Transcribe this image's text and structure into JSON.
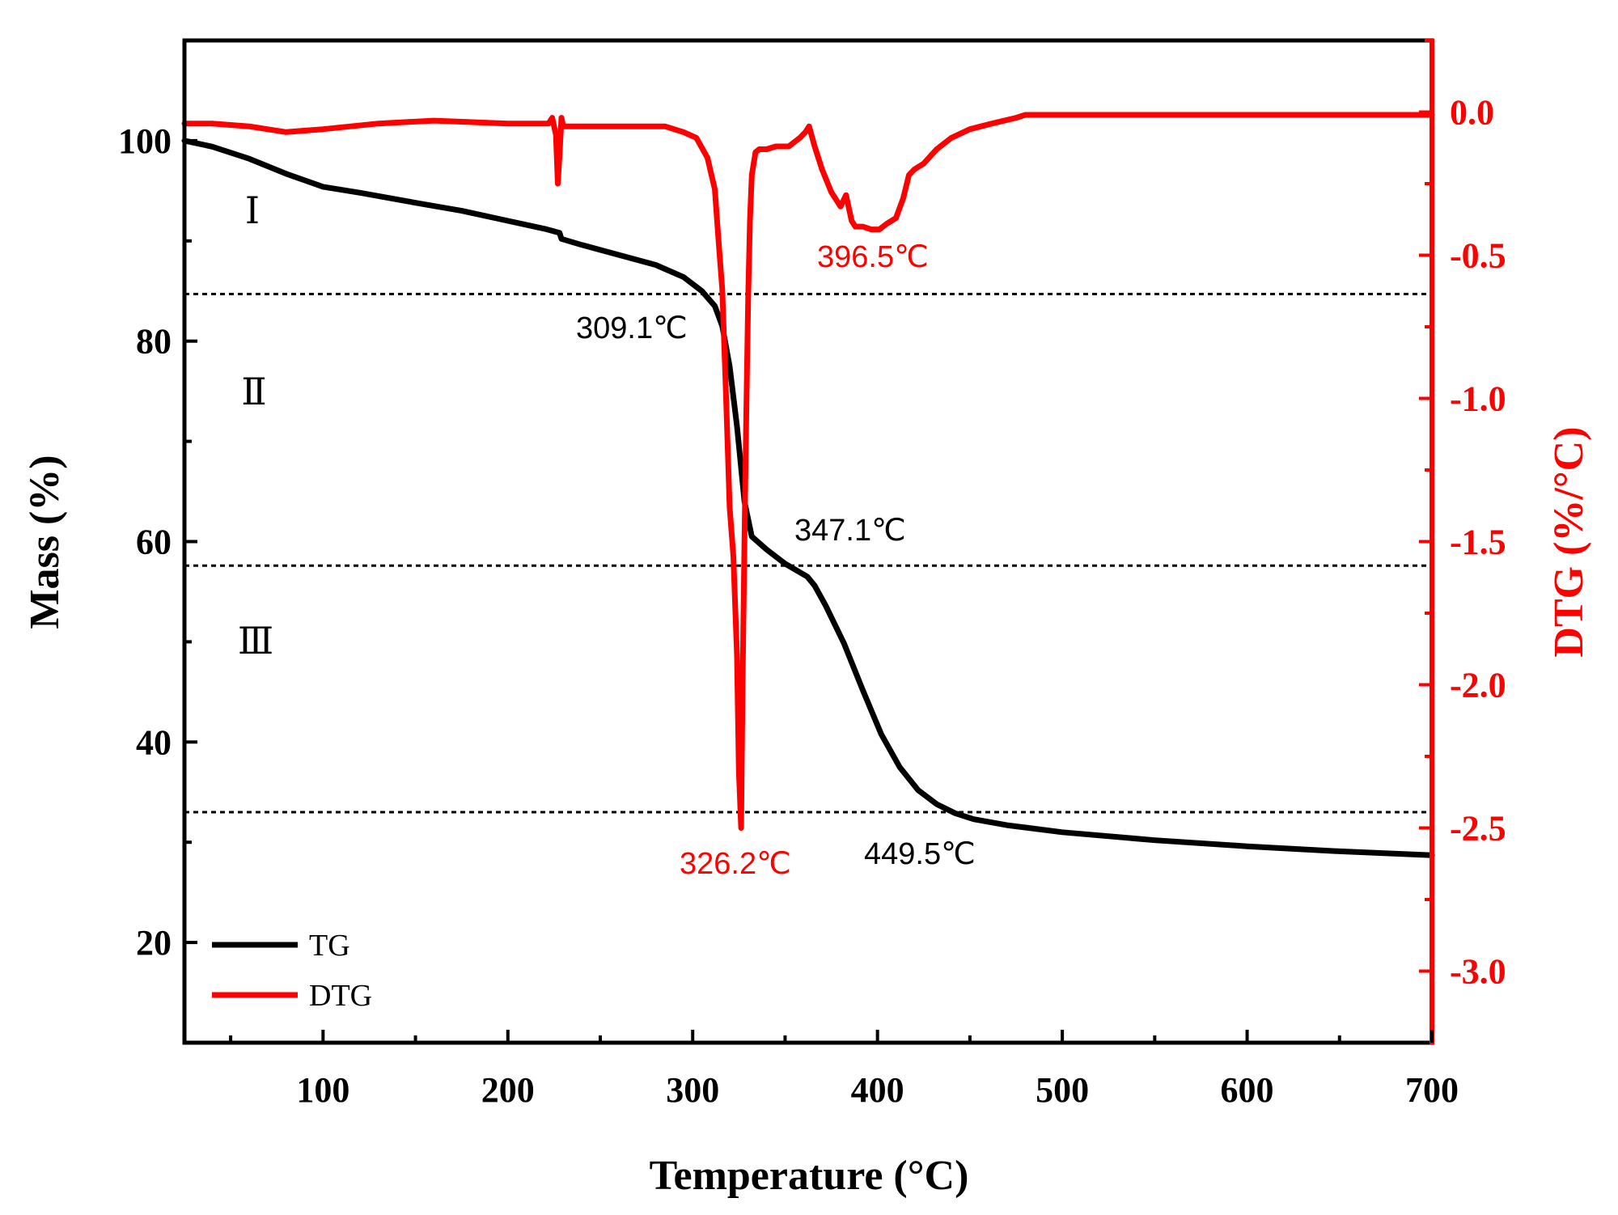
{
  "chart_data": {
    "type": "line",
    "title": "",
    "xlabel": "Temperature (°C)",
    "ylabel_left": "Mass (%)",
    "ylabel_right": "DTG (%/°C)",
    "xlim": [
      25,
      700
    ],
    "ylim_left": [
      10,
      110
    ],
    "ylim_right": [
      -3.25,
      0.25
    ],
    "x_ticks": [
      "100",
      "200",
      "300",
      "400",
      "500",
      "600",
      "700"
    ],
    "y_ticks_left": [
      "20",
      "40",
      "60",
      "80",
      "100"
    ],
    "y_ticks_right": [
      "0.0",
      "-0.5",
      "-1.0",
      "-1.5",
      "-2.0",
      "-2.5",
      "-3.0"
    ],
    "series": [
      {
        "name": "TG",
        "axis": "left",
        "color": "#000000",
        "x": [
          25,
          40,
          60,
          80,
          100,
          120,
          150,
          175,
          200,
          220,
          228,
          229,
          240,
          260,
          280,
          295,
          305,
          312,
          316,
          320,
          324,
          328,
          332,
          340,
          350,
          362,
          366,
          372,
          382,
          392,
          402,
          412,
          422,
          432,
          442,
          452,
          470,
          500,
          550,
          600,
          650,
          700
        ],
        "values": [
          100,
          99.4,
          98.2,
          96.7,
          95.4,
          94.8,
          93.8,
          93.0,
          92.0,
          91.2,
          90.8,
          90.2,
          89.6,
          88.6,
          87.6,
          86.4,
          85.0,
          83.5,
          81.5,
          77.5,
          71.5,
          64.0,
          60.5,
          59.2,
          57.8,
          56.5,
          55.6,
          53.6,
          49.8,
          45.2,
          40.8,
          37.5,
          35.2,
          33.8,
          32.9,
          32.3,
          31.7,
          31.0,
          30.2,
          29.6,
          29.1,
          28.7
        ]
      },
      {
        "name": "DTG",
        "axis": "right",
        "color": "#ff0000",
        "x": [
          25,
          40,
          60,
          80,
          100,
          130,
          160,
          200,
          222,
          224,
          226,
          227,
          228,
          229,
          230,
          232,
          260,
          285,
          295,
          302,
          308,
          312,
          314,
          316,
          318,
          320,
          322,
          324,
          325,
          326.2,
          327,
          328,
          329,
          330,
          331,
          332,
          334,
          336,
          340,
          345,
          352,
          358,
          361,
          363,
          366,
          370,
          375,
          380,
          383,
          386,
          388,
          392,
          396.5,
          401,
          405,
          410,
          414,
          417,
          420,
          425,
          432,
          440,
          450,
          462,
          475,
          480,
          500,
          550,
          600,
          650,
          700
        ],
        "values": [
          -0.04,
          -0.04,
          -0.05,
          -0.07,
          -0.06,
          -0.04,
          -0.03,
          -0.04,
          -0.04,
          -0.02,
          -0.08,
          -0.25,
          -0.15,
          -0.02,
          -0.05,
          -0.05,
          -0.05,
          -0.05,
          -0.07,
          -0.09,
          -0.16,
          -0.27,
          -0.45,
          -0.62,
          -0.98,
          -1.38,
          -1.55,
          -1.9,
          -2.3,
          -2.5,
          -2.0,
          -1.5,
          -1.05,
          -0.65,
          -0.38,
          -0.22,
          -0.14,
          -0.13,
          -0.13,
          -0.12,
          -0.12,
          -0.09,
          -0.07,
          -0.05,
          -0.12,
          -0.2,
          -0.28,
          -0.33,
          -0.29,
          -0.38,
          -0.4,
          -0.4,
          -0.41,
          -0.41,
          -0.39,
          -0.37,
          -0.3,
          -0.22,
          -0.2,
          -0.18,
          -0.13,
          -0.09,
          -0.06,
          -0.04,
          -0.02,
          -0.01,
          -0.01,
          -0.01,
          -0.01,
          -0.01,
          -0.01
        ]
      }
    ],
    "reference_lines": [
      {
        "axis": "left",
        "value": 84.7
      },
      {
        "axis": "left",
        "value": 57.6
      },
      {
        "axis": "left",
        "value": 33.0
      }
    ],
    "annotations": [
      {
        "text": "309.1℃",
        "x": 309.1,
        "color": "#000000"
      },
      {
        "text": "326.2℃",
        "x": 326.2,
        "color": "#ff0000"
      },
      {
        "text": "347.1℃",
        "x": 347.1,
        "color": "#000000"
      },
      {
        "text": "396.5℃",
        "x": 396.5,
        "color": "#ff0000"
      },
      {
        "text": "449.5℃",
        "x": 449.5,
        "color": "#000000"
      }
    ],
    "regions": [
      "Ⅰ",
      "Ⅱ",
      "Ⅲ"
    ],
    "legend": {
      "position": "bottom-left",
      "entries": [
        "TG",
        "DTG"
      ]
    }
  }
}
